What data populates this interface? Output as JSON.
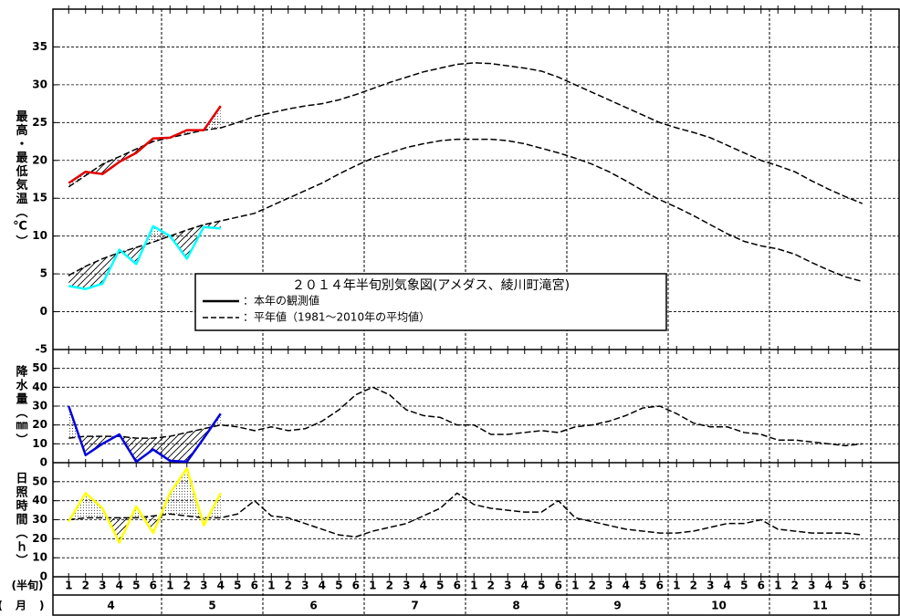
{
  "legend": {
    "title": "２０１４年半旬別気象図(アメダス、綾川町滝宮)",
    "entries": [
      "：本年の観測値",
      "：平年値（1981～2010年の平均値）"
    ]
  },
  "x_axis": {
    "period_label": "(半旬)",
    "month_label": "(月)",
    "periods": [
      1,
      2,
      3,
      4,
      5,
      6
    ],
    "months": [
      4,
      5,
      6,
      7,
      8,
      9,
      10,
      11
    ]
  },
  "chart_data": [
    {
      "type": "line",
      "ylabel": "最高・最低気温（℃）",
      "ylim": [
        -5,
        40
      ],
      "yticks": [
        -5,
        0,
        5,
        10,
        15,
        20,
        25,
        30,
        35
      ],
      "grid": true,
      "series": [
        {
          "color": "#000000",
          "dash": true,
          "values": [
            16.5,
            18,
            19.5,
            20.5,
            21.5,
            22.5,
            23,
            23.5,
            24,
            24.3,
            25,
            25.8,
            26.3,
            26.8,
            27.2,
            27.5,
            28,
            28.7,
            29.5,
            30.3,
            31,
            31.7,
            32.2,
            32.7,
            32.9,
            32.8,
            32.5,
            32.2,
            31.8,
            31,
            30,
            29,
            28,
            27,
            26,
            25,
            24.3,
            23.7,
            23,
            22,
            21,
            20,
            19.3,
            18.5,
            17.3,
            16.2,
            15.2,
            14.3
          ]
        },
        {
          "color": "#e00000",
          "values": [
            17,
            18.5,
            18.2,
            19.8,
            21,
            22.9,
            23,
            24,
            24,
            27.2
          ]
        },
        {
          "color": "#000000",
          "dash": true,
          "values": [
            4.8,
            6,
            7,
            7.8,
            8.5,
            9.2,
            10,
            10.8,
            11.5,
            12,
            12.5,
            13,
            14,
            15,
            16,
            17,
            18.2,
            19.3,
            20.3,
            21,
            21.7,
            22.2,
            22.6,
            22.8,
            22.8,
            22.8,
            22.6,
            22.2,
            21.6,
            21,
            20.3,
            19.5,
            18.5,
            17.3,
            16,
            14.8,
            13.8,
            12.7,
            11.5,
            10.3,
            9.3,
            8.7,
            8.3,
            7.6,
            6.5,
            5.5,
            4.6,
            4
          ]
        },
        {
          "color": "#00ffff",
          "values": [
            3.4,
            3,
            3.7,
            8.2,
            6.3,
            11.3,
            10,
            7,
            11.2,
            11
          ]
        }
      ]
    },
    {
      "type": "line",
      "ylabel": "降水量（㎜）",
      "ylim": [
        0,
        60
      ],
      "yticks": [
        0,
        10,
        20,
        30,
        40,
        50
      ],
      "grid": true,
      "series": [
        {
          "color": "#000000",
          "dash": true,
          "values": [
            13,
            14,
            14,
            14,
            13,
            13,
            14,
            16,
            18,
            20,
            19,
            17,
            19,
            17,
            18,
            22,
            28,
            36,
            40,
            36,
            28,
            25,
            24,
            20,
            20,
            15,
            15,
            16,
            17,
            16,
            19,
            20,
            22,
            25,
            29,
            30,
            26,
            21,
            19,
            19,
            16,
            15,
            12,
            12,
            11,
            10,
            9,
            10
          ]
        },
        {
          "color": "#0000e0",
          "values": [
            30,
            4,
            10,
            15,
            0.5,
            7,
            1,
            0.5,
            13,
            26
          ]
        }
      ]
    },
    {
      "type": "line",
      "ylabel": "日照時間（ｈ）",
      "ylim": [
        0,
        60
      ],
      "yticks": [
        0,
        10,
        20,
        30,
        40,
        50
      ],
      "grid": true,
      "series": [
        {
          "color": "#000000",
          "dash": true,
          "values": [
            30,
            31,
            31,
            31,
            31,
            32,
            33,
            32,
            31,
            31,
            33,
            40,
            32,
            31,
            28,
            25,
            22,
            21,
            24,
            26,
            28,
            32,
            36,
            44,
            38,
            36,
            35,
            34,
            34,
            40,
            31,
            29,
            27,
            25,
            24,
            23,
            23,
            24,
            26,
            28,
            28,
            30,
            25,
            24,
            23,
            23,
            23,
            22
          ]
        },
        {
          "color": "#ffff00",
          "values": [
            29,
            44,
            36,
            18,
            37,
            23,
            44,
            57,
            27,
            44
          ]
        }
      ]
    }
  ]
}
